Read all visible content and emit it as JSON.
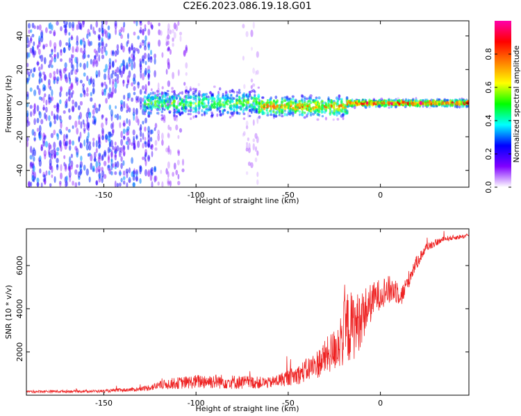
{
  "title": "C2E6.2023.086.19.18.G01",
  "chart_data": [
    {
      "type": "heatmap",
      "xlabel": "Height of straight line (km)",
      "ylabel": "Frequency (Hz)",
      "xlim": [
        -192,
        48
      ],
      "ylim": [
        -50,
        49
      ],
      "x_ticks": [
        -150,
        -100,
        -50,
        0
      ],
      "x_tick_labels": [
        "-150",
        "-100",
        "-50",
        "0"
      ],
      "y_ticks": [
        -40,
        -20,
        0,
        20,
        40
      ],
      "y_tick_labels": [
        "-40",
        "-20",
        "0",
        "20",
        "40"
      ],
      "colorbar": {
        "label": "Normalized spectral amplitude",
        "range": [
          0,
          1
        ],
        "ticks": [
          0.0,
          0.2,
          0.4,
          0.6,
          0.8
        ],
        "tick_labels": [
          "0.0",
          "0.2",
          "0.4",
          "0.6",
          "0.8"
        ],
        "colors": [
          "#ffffff",
          "#8000ff",
          "#0000ff",
          "#00ffff",
          "#00ff00",
          "#ffff00",
          "#ff8000",
          "#ff0000",
          "#ff00aa"
        ]
      },
      "bands": [
        {
          "x_range": [
            -192,
            -122
          ],
          "freq_spread": 49,
          "intensity": 0.25,
          "density": 0.55
        },
        {
          "x_range": [
            -122,
            -105
          ],
          "freq_spread": 49,
          "intensity": 0.12,
          "density": 0.25
        },
        {
          "x_range": [
            -75,
            -66
          ],
          "freq_spread": 49,
          "intensity": 0.08,
          "density": 0.15
        },
        {
          "x_range": [
            -128,
            -66
          ],
          "freq_center": 0,
          "freq_spread": 8,
          "intensity": 0.45,
          "density": 0.9
        },
        {
          "x_range": [
            -66,
            -18
          ],
          "freq_center": -2,
          "freq_spread": 6,
          "intensity": 0.6,
          "density": 0.95
        },
        {
          "x_range": [
            -18,
            48
          ],
          "freq_center": 0,
          "freq_spread": 2,
          "intensity": 0.75,
          "density": 1.0
        }
      ],
      "grid": false
    },
    {
      "type": "line",
      "xlabel": "Height of straight line (km)",
      "ylabel": "SNR (10 * v/v)",
      "xlim": [
        -192,
        48
      ],
      "ylim": [
        0,
        7700
      ],
      "x_ticks": [
        -150,
        -100,
        -50,
        0
      ],
      "x_tick_labels": [
        "-150",
        "-100",
        "-50",
        "0"
      ],
      "y_ticks": [
        2000,
        4000,
        6000
      ],
      "y_tick_labels": [
        "2000",
        "4000",
        "6000"
      ],
      "series": [
        {
          "color": "#ee2222",
          "envelope": [
            {
              "x": -192,
              "mean": 150,
              "noise": 120
            },
            {
              "x": -150,
              "mean": 170,
              "noise": 130
            },
            {
              "x": -130,
              "mean": 250,
              "noise": 200
            },
            {
              "x": -115,
              "mean": 450,
              "noise": 500
            },
            {
              "x": -95,
              "mean": 550,
              "noise": 700
            },
            {
              "x": -75,
              "mean": 500,
              "noise": 650
            },
            {
              "x": -60,
              "mean": 500,
              "noise": 500
            },
            {
              "x": -45,
              "mean": 800,
              "noise": 900
            },
            {
              "x": -35,
              "mean": 1200,
              "noise": 1300
            },
            {
              "x": -25,
              "mean": 1800,
              "noise": 2000
            },
            {
              "x": -18,
              "mean": 2600,
              "noise": 3500
            },
            {
              "x": -13,
              "mean": 2800,
              "noise": 3000
            },
            {
              "x": -8,
              "mean": 3600,
              "noise": 2200
            },
            {
              "x": -3,
              "mean": 4300,
              "noise": 1500
            },
            {
              "x": 2,
              "mean": 4600,
              "noise": 1400
            },
            {
              "x": 8,
              "mean": 4700,
              "noise": 1300
            },
            {
              "x": 12,
              "mean": 4500,
              "noise": 1000
            },
            {
              "x": 18,
              "mean": 5800,
              "noise": 700
            },
            {
              "x": 25,
              "mean": 6800,
              "noise": 400
            },
            {
              "x": 35,
              "mean": 7200,
              "noise": 250
            },
            {
              "x": 48,
              "mean": 7350,
              "noise": 200
            }
          ]
        }
      ],
      "grid": false
    }
  ]
}
